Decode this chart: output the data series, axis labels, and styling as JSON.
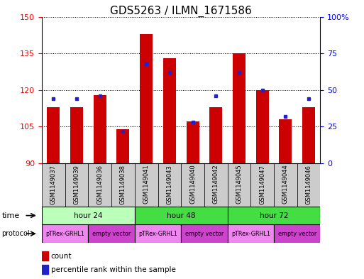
{
  "title": "GDS5263 / ILMN_1671586",
  "samples": [
    "GSM1149037",
    "GSM1149039",
    "GSM1149036",
    "GSM1149038",
    "GSM1149041",
    "GSM1149043",
    "GSM1149040",
    "GSM1149042",
    "GSM1149045",
    "GSM1149047",
    "GSM1149044",
    "GSM1149046"
  ],
  "count_values": [
    113,
    113,
    118,
    104,
    143,
    133,
    107,
    113,
    135,
    120,
    108,
    113
  ],
  "percentile_values": [
    44,
    44,
    46,
    22,
    68,
    62,
    28,
    46,
    62,
    50,
    32,
    44
  ],
  "ymin": 90,
  "ymax": 150,
  "yticks": [
    90,
    105,
    120,
    135,
    150
  ],
  "right_yticks": [
    0,
    25,
    50,
    75,
    100
  ],
  "right_yticklabels": [
    "0",
    "25",
    "50",
    "75",
    "100%"
  ],
  "bar_color": "#cc0000",
  "dot_color": "#2222cc",
  "time_colors": [
    "#bbffbb",
    "#44dd44",
    "#44dd44"
  ],
  "time_groups": [
    {
      "label": "hour 24",
      "start": 0,
      "end": 4
    },
    {
      "label": "hour 48",
      "start": 4,
      "end": 8
    },
    {
      "label": "hour 72",
      "start": 8,
      "end": 12
    }
  ],
  "protocol_colors": [
    "#ee88ee",
    "#cc44cc"
  ],
  "protocol_groups": [
    {
      "label": "pTRex-GRHL1",
      "start": 0,
      "end": 2
    },
    {
      "label": "empty vector",
      "start": 2,
      "end": 4
    },
    {
      "label": "pTRex-GRHL1",
      "start": 4,
      "end": 6
    },
    {
      "label": "empty vector",
      "start": 6,
      "end": 8
    },
    {
      "label": "pTRex-GRHL1",
      "start": 8,
      "end": 10
    },
    {
      "label": "empty vector",
      "start": 10,
      "end": 12
    }
  ],
  "title_fontsize": 11,
  "tick_fontsize": 8,
  "sample_fontsize": 6,
  "row_fontsize": 7.5,
  "legend_fontsize": 7.5
}
